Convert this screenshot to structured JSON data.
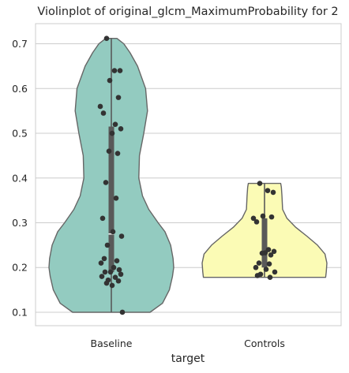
{
  "chart_data": {
    "type": "violin",
    "title": "Violinplot of original_glcm_MaximumProbability for 2",
    "xlabel": "target",
    "ylabel": "",
    "ylim": [
      0.07,
      0.745
    ],
    "yticks": [
      "0.1",
      "0.2",
      "0.3",
      "0.4",
      "0.5",
      "0.6",
      "0.7"
    ],
    "grid": true,
    "categories": [
      "Baseline",
      "Controls"
    ],
    "colors": {
      "Baseline": "#93cbc0",
      "Controls": "#fbfbb5",
      "outline": "#666666",
      "points": "#333333",
      "grid": "#cccccc",
      "box": "#595959"
    },
    "violins": [
      {
        "category": "Baseline",
        "min": 0.1,
        "q1": 0.19,
        "median": 0.275,
        "q3": 0.515,
        "max": 0.712,
        "profile": [
          [
            0.1,
            0.62
          ],
          [
            0.12,
            0.82
          ],
          [
            0.15,
            0.93
          ],
          [
            0.18,
            0.98
          ],
          [
            0.2,
            1.0
          ],
          [
            0.22,
            0.99
          ],
          [
            0.25,
            0.95
          ],
          [
            0.28,
            0.86
          ],
          [
            0.3,
            0.75
          ],
          [
            0.33,
            0.6
          ],
          [
            0.36,
            0.5
          ],
          [
            0.4,
            0.44
          ],
          [
            0.45,
            0.45
          ],
          [
            0.5,
            0.52
          ],
          [
            0.55,
            0.58
          ],
          [
            0.6,
            0.55
          ],
          [
            0.65,
            0.42
          ],
          [
            0.68,
            0.3
          ],
          [
            0.7,
            0.2
          ],
          [
            0.712,
            0.09
          ]
        ],
        "points": [
          0.712,
          0.64,
          0.64,
          0.618,
          0.58,
          0.56,
          0.545,
          0.52,
          0.51,
          0.5,
          0.46,
          0.455,
          0.39,
          0.355,
          0.31,
          0.28,
          0.27,
          0.25,
          0.22,
          0.215,
          0.21,
          0.2,
          0.195,
          0.19,
          0.19,
          0.185,
          0.18,
          0.178,
          0.172,
          0.17,
          0.165,
          0.16,
          0.1
        ]
      },
      {
        "category": "Controls",
        "min": 0.178,
        "q1": 0.2,
        "median": 0.235,
        "q3": 0.31,
        "max": 0.388,
        "profile": [
          [
            0.178,
            0.98
          ],
          [
            0.19,
            0.99
          ],
          [
            0.21,
            1.0
          ],
          [
            0.23,
            0.97
          ],
          [
            0.25,
            0.85
          ],
          [
            0.27,
            0.68
          ],
          [
            0.29,
            0.5
          ],
          [
            0.31,
            0.36
          ],
          [
            0.33,
            0.29
          ],
          [
            0.36,
            0.28
          ],
          [
            0.38,
            0.27
          ],
          [
            0.388,
            0.26
          ]
        ],
        "points": [
          0.388,
          0.372,
          0.368,
          0.315,
          0.313,
          0.31,
          0.302,
          0.24,
          0.236,
          0.233,
          0.232,
          0.228,
          0.21,
          0.208,
          0.2,
          0.196,
          0.19,
          0.185,
          0.182,
          0.178
        ]
      }
    ]
  }
}
